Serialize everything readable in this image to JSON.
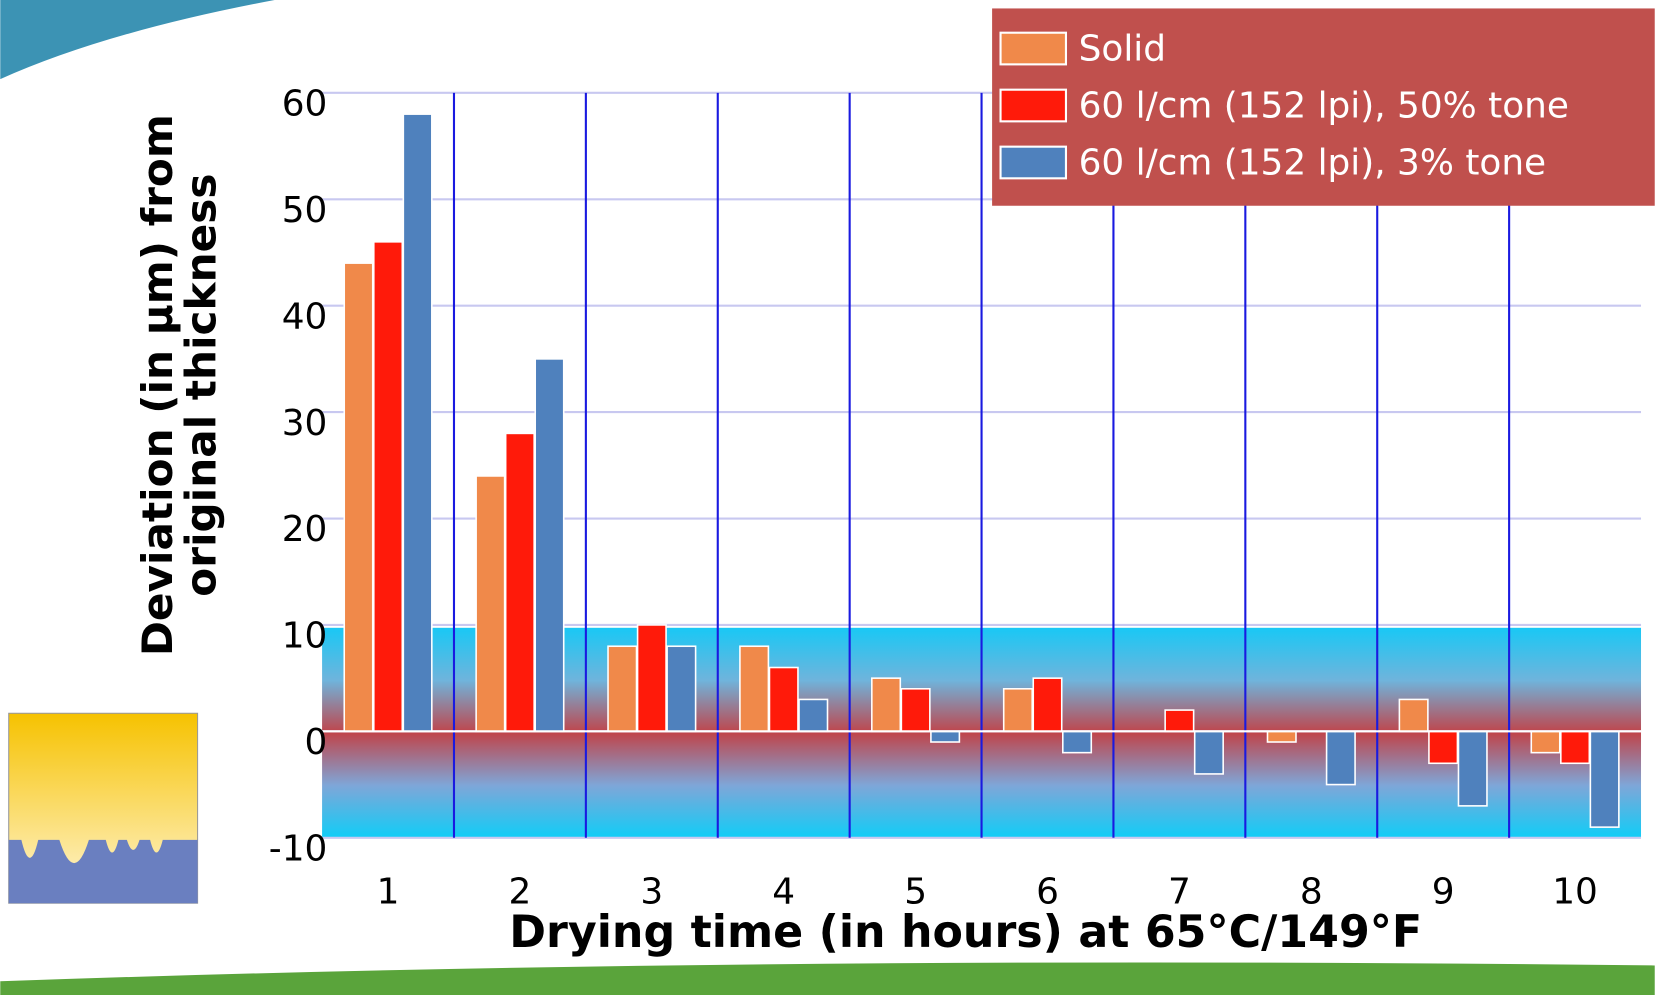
{
  "chart_data": {
    "type": "bar",
    "ylabel": [
      "Deviation (in µm) from",
      "original thickness"
    ],
    "xlabel": "Drying time (in hours) at 65°C/149°F",
    "categories": [
      "1",
      "2",
      "3",
      "4",
      "5",
      "6",
      "7",
      "8",
      "9",
      "10"
    ],
    "series": [
      {
        "name": "Solid",
        "color": "#f0894a",
        "values": [
          44,
          24,
          8,
          8,
          5,
          4,
          0,
          -1,
          3,
          -2
        ]
      },
      {
        "name": "60 l/cm (152 lpi), 50% tone",
        "color": "#ff1a0a",
        "values": [
          46,
          28,
          10,
          6,
          4,
          5,
          2,
          0,
          -3,
          -3
        ]
      },
      {
        "name": "60 l/cm (152 lpi), 3% tone",
        "color": "#4f81bd",
        "values": [
          58,
          35,
          8,
          3,
          -1,
          -2,
          -4,
          -5,
          -7,
          -9
        ]
      }
    ],
    "ylim": [
      -10,
      60
    ],
    "yticks": [
      -10,
      0,
      10,
      20,
      30,
      40,
      50,
      60
    ],
    "grid": true,
    "legend": "upper right"
  }
}
